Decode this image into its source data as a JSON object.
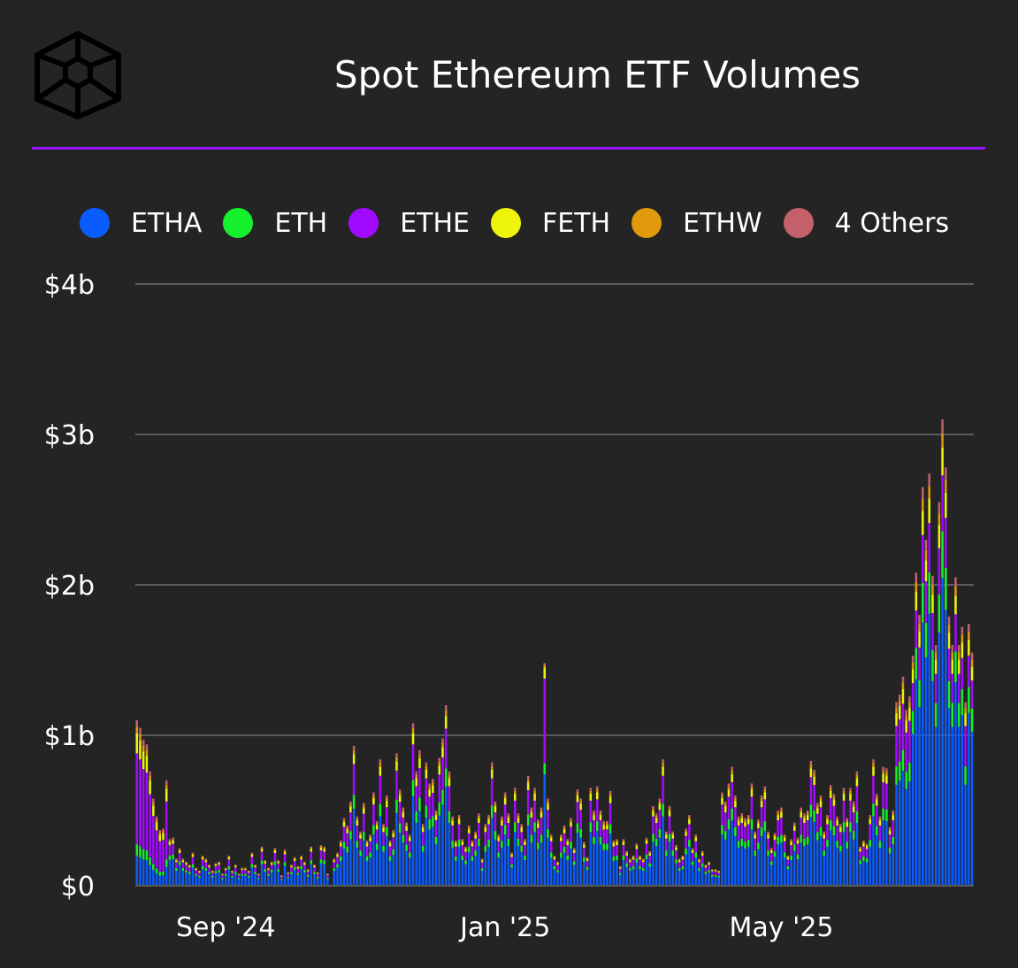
{
  "header": {
    "title": "Spot Ethereum ETF Volumes"
  },
  "colors": {
    "background": "#242424",
    "accent_line": "#9a16ff",
    "grid": "#5a5a5a"
  },
  "legend": [
    {
      "label": "ETHA",
      "color": "#0a5cff"
    },
    {
      "label": "ETH",
      "color": "#14f02e"
    },
    {
      "label": "ETHE",
      "color": "#a20aff"
    },
    {
      "label": "FETH",
      "color": "#eef50a"
    },
    {
      "label": "ETHW",
      "color": "#e09a0c"
    },
    {
      "label": "4 Others",
      "color": "#c4606a"
    }
  ],
  "chart_data": {
    "type": "bar",
    "stacked": true,
    "title": "Spot Ethereum ETF Volumes",
    "xlabel": "",
    "ylabel": "",
    "ylim": [
      0,
      4
    ],
    "y_unit": "$ billions",
    "y_ticks": [
      {
        "value": 0,
        "label": "$0"
      },
      {
        "value": 1,
        "label": "$1b"
      },
      {
        "value": 2,
        "label": "$2b"
      },
      {
        "value": 3,
        "label": "$3b"
      },
      {
        "value": 4,
        "label": "$4b"
      }
    ],
    "x_ticks": [
      {
        "index": 27,
        "label": "Sep '24"
      },
      {
        "index": 112,
        "label": "Jan '25"
      },
      {
        "index": 196,
        "label": "May '25"
      }
    ],
    "grid": true,
    "legend_position": "top",
    "series_order": [
      "ETHA",
      "ETH",
      "ETHE",
      "FETH",
      "ETHW",
      "4 Others"
    ],
    "series_colors": [
      "#0a5cff",
      "#14f02e",
      "#a20aff",
      "#eef50a",
      "#e09a0c",
      "#c4606a"
    ],
    "totals": [
      1.1,
      1.05,
      0.97,
      0.94,
      0.76,
      0.58,
      0.46,
      0.37,
      0.38,
      0.7,
      0.31,
      0.32,
      0.18,
      0.25,
      0.18,
      0.16,
      0.14,
      0.22,
      0.12,
      0.1,
      0.2,
      0.18,
      0.14,
      0.1,
      0.15,
      0.16,
      0.08,
      0.12,
      0.2,
      0.1,
      0.14,
      0.08,
      0.12,
      0.12,
      0.1,
      0.22,
      0.14,
      0.08,
      0.26,
      0.17,
      0.12,
      0.16,
      0.25,
      0.17,
      0.07,
      0.24,
      0.09,
      0.14,
      0.19,
      0.13,
      0.2,
      0.16,
      0.11,
      0.26,
      0.14,
      0.09,
      0.27,
      0.26,
      0.08,
      0,
      0.18,
      0.22,
      0.3,
      0.45,
      0.4,
      0.56,
      0.93,
      0.46,
      0.36,
      0.55,
      0.3,
      0.34,
      0.62,
      0.43,
      0.84,
      0.41,
      0.6,
      0.3,
      0.37,
      0.88,
      0.64,
      0.52,
      0.42,
      0.34,
      1.08,
      0.76,
      0.9,
      0.41,
      0.82,
      0.68,
      0.71,
      0.5,
      0.85,
      0.98,
      1.2,
      0.76,
      0.46,
      0.3,
      0.47,
      0.31,
      0.26,
      0.4,
      0.3,
      0.36,
      0.48,
      0.18,
      0.41,
      0.47,
      0.82,
      0.56,
      0.34,
      0.46,
      0.62,
      0.48,
      0.22,
      0.65,
      0.48,
      0.41,
      0.31,
      0.73,
      0.52,
      0.65,
      0.44,
      0.52,
      1.48,
      0.58,
      0.34,
      0.2,
      0.16,
      0.34,
      0.4,
      0.31,
      0.45,
      0.25,
      0.64,
      0.58,
      0.29,
      0.19,
      0.65,
      0.5,
      0.66,
      0.5,
      0.43,
      0.43,
      0.63,
      0.3,
      0.31,
      0.13,
      0.31,
      0.23,
      0.18,
      0.2,
      0.28,
      0.2,
      0.18,
      0.32,
      0.23,
      0.53,
      0.48,
      0.58,
      0.84,
      0.36,
      0.53,
      0.36,
      0.27,
      0.18,
      0.2,
      0.38,
      0.47,
      0.25,
      0.34,
      0.18,
      0.23,
      0.14,
      0.16,
      0.11,
      0.11,
      0.1,
      0.62,
      0.56,
      0.68,
      0.79,
      0.6,
      0.46,
      0.48,
      0.45,
      0.47,
      0.68,
      0.36,
      0.44,
      0.6,
      0.66,
      0.36,
      0.25,
      0.35,
      0.5,
      0.52,
      0.34,
      0.2,
      0.31,
      0.42,
      0.32,
      0.52,
      0.48,
      0.5,
      0.83,
      0.77,
      0.55,
      0.6,
      0.36,
      0.47,
      0.67,
      0.61,
      0.46,
      0.41,
      0.65,
      0.45,
      0.65,
      0.56,
      0.76,
      0.26,
      0.3,
      0.28,
      0.47,
      0.84,
      0.61,
      0.46,
      0.79,
      0.78,
      0.39,
      0.5,
      1.22,
      1.27,
      1.39,
      1.17,
      1.26,
      1.53,
      2.08,
      1.8,
      2.65,
      2.3,
      2.74,
      2.06,
      1.6,
      2.55,
      3.1,
      2.78,
      1.79,
      1.6,
      2.05,
      1.6,
      1.72,
      1.22,
      1.74,
      1.55
    ]
  }
}
